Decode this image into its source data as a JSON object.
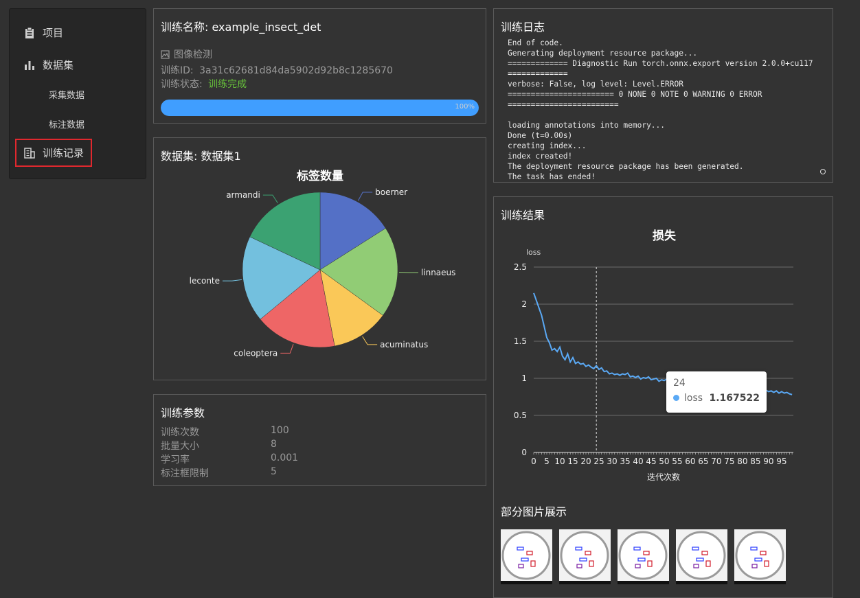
{
  "sidebar": {
    "items": [
      {
        "label": "项目",
        "icon": "clipboard-icon"
      },
      {
        "label": "数据集",
        "icon": "bar-chart-icon"
      },
      {
        "label": "采集数据"
      },
      {
        "label": "标注数据"
      },
      {
        "label": "训练记录",
        "icon": "building-icon",
        "active": true
      }
    ]
  },
  "info": {
    "title": "训练名称: example_insect_det",
    "task_type": "图像检测",
    "task_type_icon": "image-icon",
    "id_label": "训练ID:",
    "id_value": "3a31c62681d84da5902d92b8c1285670",
    "status_label": "训练状态:",
    "status_value": "训练完成",
    "progress": 100,
    "progress_text": "100%"
  },
  "dataset": {
    "title": "数据集:  数据集1"
  },
  "params": {
    "title": "训练参数",
    "rows": [
      {
        "label": "训练次数",
        "value": "100"
      },
      {
        "label": "批量大小",
        "value": "8"
      },
      {
        "label": "学习率",
        "value": "0.001"
      },
      {
        "label": "标注框限制",
        "value": "5"
      }
    ]
  },
  "log": {
    "title": "训练日志",
    "lines": [
      "End of code.",
      "Generating deployment resource package...",
      "============= Diagnostic Run torch.onnx.export version 2.0.0+cu117",
      "=============",
      "verbose: False, log level: Level.ERROR",
      "======================= 0 NONE 0 NOTE 0 WARNING 0 ERROR",
      "========================",
      "",
      "loading annotations into memory...",
      "Done (t=0.00s)",
      "creating index...",
      "index created!",
      "The deployment resource package has been generated.",
      "The task has ended!"
    ]
  },
  "results": {
    "title": "训练结果",
    "gallery_title": "部分图片展示",
    "thumb_count": 5
  },
  "tooltip": {
    "x": "24",
    "series": "loss",
    "value": "1.167522"
  },
  "colors": {
    "accent": "#409eff",
    "success": "#67c23a",
    "active_outline": "#e0282e"
  },
  "chart_data": [
    {
      "type": "pie",
      "title": "标签数量",
      "labels": [
        "boerner",
        "linnaeus",
        "acuminatus",
        "coleoptera",
        "leconte",
        "armandi"
      ],
      "values": [
        16,
        19,
        12,
        17,
        18,
        18
      ],
      "colors": [
        "#5470c6",
        "#91cc75",
        "#fac858",
        "#ee6666",
        "#73c0de",
        "#3ba272"
      ]
    },
    {
      "type": "line",
      "title": "损失",
      "xlabel": "迭代次数",
      "ylabel": "loss",
      "ylim": [
        0,
        2.5
      ],
      "yticks": [
        "0",
        "0.5",
        "1",
        "1.5",
        "2",
        "2.5"
      ],
      "xticks": [
        "0",
        "5",
        "10",
        "15",
        "20",
        "25",
        "30",
        "35",
        "40",
        "45",
        "50",
        "55",
        "60",
        "65",
        "70",
        "75",
        "80",
        "85",
        "90",
        "95"
      ],
      "grid": true,
      "highlight_x": 24,
      "series": [
        {
          "name": "loss",
          "color": "#5aa9f5",
          "x": [
            0,
            1,
            2,
            3,
            4,
            5,
            6,
            7,
            8,
            9,
            10,
            11,
            12,
            13,
            14,
            15,
            16,
            17,
            18,
            19,
            20,
            21,
            22,
            23,
            24,
            25,
            26,
            27,
            28,
            29,
            30,
            31,
            32,
            33,
            34,
            35,
            36,
            37,
            38,
            39,
            40,
            41,
            42,
            43,
            44,
            45,
            46,
            47,
            48,
            49,
            50,
            51,
            52,
            53,
            54,
            55,
            56,
            57,
            58,
            59,
            60,
            61,
            62,
            63,
            64,
            65,
            66,
            67,
            68,
            69,
            70,
            71,
            72,
            73,
            74,
            75,
            76,
            77,
            78,
            79,
            80,
            81,
            82,
            83,
            84,
            85,
            86,
            87,
            88,
            89,
            90,
            91,
            92,
            93,
            94,
            95,
            96,
            97,
            98,
            99
          ],
          "values": [
            2.15,
            2.05,
            1.95,
            1.85,
            1.7,
            1.55,
            1.48,
            1.38,
            1.4,
            1.36,
            1.42,
            1.3,
            1.25,
            1.33,
            1.22,
            1.28,
            1.2,
            1.22,
            1.19,
            1.2,
            1.16,
            1.18,
            1.15,
            1.13,
            1.17,
            1.12,
            1.14,
            1.09,
            1.1,
            1.06,
            1.07,
            1.05,
            1.06,
            1.04,
            1.06,
            1.05,
            1.07,
            1.02,
            1.03,
            1.01,
            1.03,
            0.99,
            1.01,
            1.0,
            1.02,
            0.98,
            0.99,
            1.0,
            0.96,
            0.98,
            0.97,
            0.99,
            0.96,
            0.97,
            0.95,
            0.97,
            0.96,
            0.94,
            0.96,
            0.95,
            0.93,
            0.95,
            0.94,
            0.92,
            0.94,
            0.93,
            0.91,
            0.92,
            0.9,
            0.91,
            0.89,
            0.9,
            0.88,
            0.9,
            0.87,
            0.89,
            0.86,
            0.88,
            0.86,
            0.87,
            0.85,
            0.87,
            0.84,
            0.86,
            0.84,
            0.85,
            0.83,
            0.85,
            0.82,
            0.84,
            0.82,
            0.83,
            0.81,
            0.83,
            0.8,
            0.82,
            0.8,
            0.81,
            0.79,
            0.78
          ]
        }
      ]
    }
  ]
}
